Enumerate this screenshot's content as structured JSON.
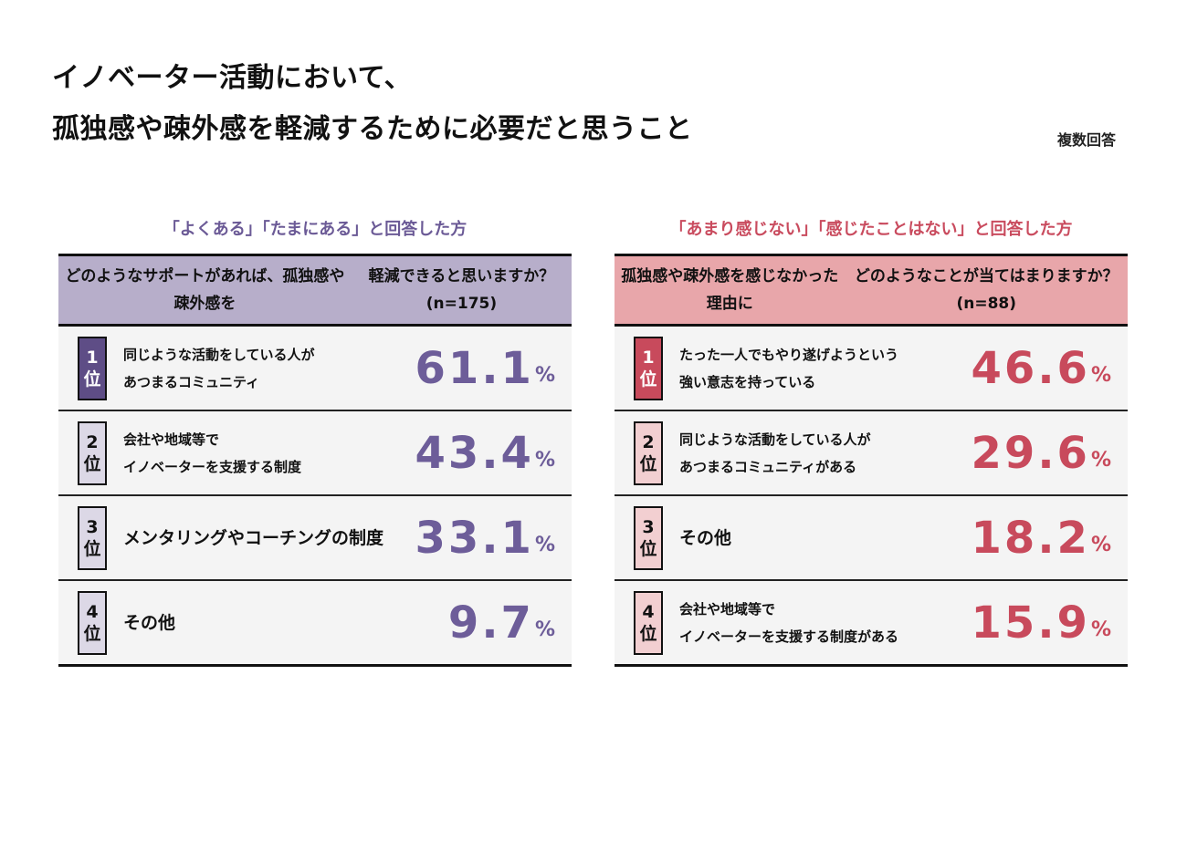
{
  "title": [
    "イノベーター活動において、",
    "孤独感や疎外感を軽減するために必要だと思うこと"
  ],
  "note": "複数回答",
  "chart_data": [
    {
      "type": "table",
      "group_label": "「よくある」「たまにある」と回答した方",
      "question": [
        "どのようなサポートがあれば、孤独感や疎外感を",
        "軽減できると思いますか？(n=175)"
      ],
      "rows": [
        {
          "rank": "1",
          "rank_suffix": "位",
          "label": [
            "同じような活動をしている人が",
            "あつまるコミュニティ"
          ],
          "value": "61.1",
          "unit": "%"
        },
        {
          "rank": "2",
          "rank_suffix": "位",
          "label": [
            "会社や地域等で",
            "イノベーターを支援する制度"
          ],
          "value": "43.4",
          "unit": "%"
        },
        {
          "rank": "3",
          "rank_suffix": "位",
          "label": [
            "メンタリングやコーチングの制度"
          ],
          "value": "33.1",
          "unit": "%"
        },
        {
          "rank": "4",
          "rank_suffix": "位",
          "label": [
            "その他"
          ],
          "value": "9.7",
          "unit": "%"
        }
      ],
      "accent_color": "#6d5d99"
    },
    {
      "type": "table",
      "group_label": "「あまり感じない」「感じたことはない」と回答した方",
      "question": [
        "孤独感や疎外感を感じなかった理由に",
        "どのようなことが当てはまりますか？(n=88)"
      ],
      "rows": [
        {
          "rank": "1",
          "rank_suffix": "位",
          "label": [
            "たった一人でもやり遂げようという",
            "強い意志を持っている"
          ],
          "value": "46.6",
          "unit": "%"
        },
        {
          "rank": "2",
          "rank_suffix": "位",
          "label": [
            "同じような活動をしている人が",
            "あつまるコミュニティがある"
          ],
          "value": "29.6",
          "unit": "%"
        },
        {
          "rank": "3",
          "rank_suffix": "位",
          "label": [
            "その他"
          ],
          "value": "18.2",
          "unit": "%"
        },
        {
          "rank": "4",
          "rank_suffix": "位",
          "label": [
            "会社や地域等で",
            "イノベーターを支援する制度がある"
          ],
          "value": "15.9",
          "unit": "%"
        }
      ],
      "accent_color": "#c84a5c"
    }
  ]
}
